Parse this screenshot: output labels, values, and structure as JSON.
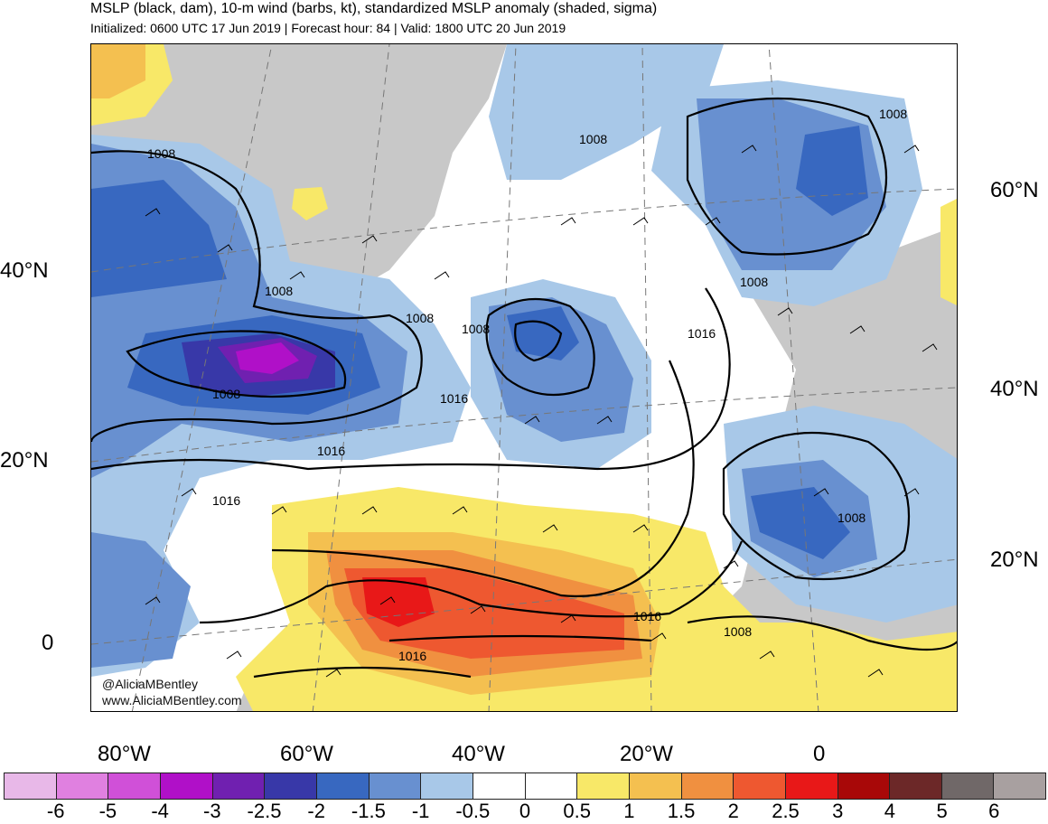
{
  "header": {
    "title": "MSLP (black, dam), 10-m wind (barbs, kt), standardized MSLP anomaly (shaded, sigma)",
    "subtitle": "Initialized: 0600 UTC 17 Jun 2019 | Forecast hour: 84 | Valid: 1800 UTC 20 Jun 2019"
  },
  "credit": {
    "handle": "@AliciaMBentley",
    "website": "www.AliciaMBentley.com"
  },
  "axes": {
    "left_lat": [
      "40°N",
      "20°N",
      "0"
    ],
    "right_lat": [
      "60°N",
      "40°N",
      "20°N"
    ],
    "bottom_lon": [
      "80°W",
      "60°W",
      "40°W",
      "20°W",
      "0"
    ]
  },
  "isobars": {
    "labels": [
      "1008",
      "1008",
      "1008",
      "1008",
      "1008",
      "1008",
      "1008",
      "1008",
      "1008",
      "1016",
      "1016",
      "1016",
      "1016",
      "1016"
    ]
  },
  "colorbar": {
    "labels": [
      "-6",
      "-5",
      "-4",
      "-3",
      "-2.5",
      "-2",
      "-1.5",
      "-1",
      "-0.5",
      "0",
      "0.5",
      "1",
      "1.5",
      "2",
      "2.5",
      "3",
      "4",
      "5",
      "6"
    ],
    "colors": [
      "#e8b8e8",
      "#e080e0",
      "#d050d8",
      "#b010c8",
      "#7020b0",
      "#3838a8",
      "#3868c0",
      "#6890d0",
      "#a8c8e8",
      "#ffffff",
      "#ffffff",
      "#f8e868",
      "#f4c050",
      "#f09040",
      "#ee5830",
      "#e81818",
      "#a80808",
      "#6c2828",
      "#706868",
      "#a8a0a0"
    ]
  }
}
